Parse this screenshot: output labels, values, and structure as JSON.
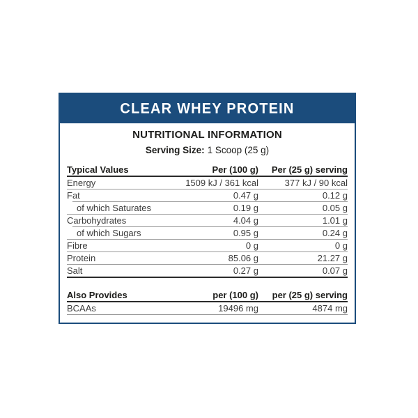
{
  "product": {
    "title": "CLEAR WHEY PROTEIN"
  },
  "section": {
    "title": "NUTRITIONAL INFORMATION"
  },
  "serving": {
    "label": "Serving Size:",
    "value": "1 Scoop (25 g)"
  },
  "colors": {
    "brand_blue": "#1b4c7c",
    "dark_rule": "#2a2a2a",
    "gray_rule": "#9b9b9b",
    "heading_text": "#1d1d1b",
    "row_text": "#3b3b3b"
  },
  "main_table": {
    "headers": [
      "Typical Values",
      "Per (100 g)",
      "Per (25 g) serving"
    ],
    "rows": [
      {
        "label": "Energy",
        "per_100g": "1509 kJ / 361 kcal",
        "per_25g": "377 kJ / 90 kcal",
        "sub": false
      },
      {
        "label": "Fat",
        "per_100g": "0.47 g",
        "per_25g": "0.12 g",
        "sub": false
      },
      {
        "label": "of which Saturates",
        "per_100g": "0.19 g",
        "per_25g": "0.05 g",
        "sub": true
      },
      {
        "label": "Carbohydrates",
        "per_100g": "4.04 g",
        "per_25g": "1.01 g",
        "sub": false
      },
      {
        "label": "of which Sugars",
        "per_100g": "0.95 g",
        "per_25g": "0.24 g",
        "sub": true
      },
      {
        "label": "Fibre",
        "per_100g": "0 g",
        "per_25g": "0 g",
        "sub": false
      },
      {
        "label": "Protein",
        "per_100g": "85.06 g",
        "per_25g": "21.27 g",
        "sub": false
      },
      {
        "label": "Salt",
        "per_100g": "0.27 g",
        "per_25g": "0.07 g",
        "sub": false
      }
    ]
  },
  "also_provides": {
    "headers": [
      "Also Provides",
      "per (100 g)",
      "per (25 g) serving"
    ],
    "rows": [
      {
        "label": "BCAAs",
        "per_100g": "19496 mg",
        "per_25g": "4874 mg",
        "sub": false
      }
    ]
  }
}
